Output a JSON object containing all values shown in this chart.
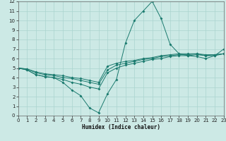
{
  "xlabel": "Humidex (Indice chaleur)",
  "xlim": [
    0,
    23
  ],
  "ylim": [
    0,
    12
  ],
  "xticks": [
    0,
    1,
    2,
    3,
    4,
    5,
    6,
    7,
    8,
    9,
    10,
    11,
    12,
    13,
    14,
    15,
    16,
    17,
    18,
    19,
    20,
    21,
    22,
    23
  ],
  "yticks": [
    0,
    1,
    2,
    3,
    4,
    5,
    6,
    7,
    8,
    9,
    10,
    11,
    12
  ],
  "bg_color": "#cce9e5",
  "line_color": "#1a7a6e",
  "grid_color": "#aad4cf",
  "lines": [
    {
      "x": [
        0,
        1,
        2,
        3,
        4,
        5,
        6,
        7,
        8,
        9,
        10,
        11,
        12,
        13,
        14,
        15,
        16,
        17,
        18,
        19,
        20,
        21,
        22,
        23
      ],
      "y": [
        5.0,
        4.8,
        4.3,
        4.1,
        4.0,
        3.5,
        2.7,
        2.1,
        0.8,
        0.3,
        2.3,
        3.8,
        7.6,
        10.0,
        11.0,
        12.0,
        10.2,
        7.5,
        6.5,
        6.3,
        6.2,
        6.0,
        6.3,
        7.0
      ]
    },
    {
      "x": [
        0,
        1,
        2,
        3,
        4,
        5,
        6,
        7,
        8,
        9,
        10,
        11,
        12,
        13,
        14,
        15,
        16,
        17,
        18,
        19,
        20,
        21,
        22,
        23
      ],
      "y": [
        5.0,
        4.8,
        4.3,
        4.1,
        4.0,
        3.8,
        3.5,
        3.3,
        3.0,
        2.8,
        4.5,
        5.0,
        5.3,
        5.5,
        5.7,
        5.9,
        6.0,
        6.2,
        6.3,
        6.3,
        6.4,
        6.3,
        6.3,
        6.5
      ]
    },
    {
      "x": [
        0,
        1,
        2,
        3,
        4,
        5,
        6,
        7,
        8,
        9,
        10,
        11,
        12,
        13,
        14,
        15,
        16,
        17,
        18,
        19,
        20,
        21,
        22,
        23
      ],
      "y": [
        5.0,
        4.9,
        4.5,
        4.3,
        4.2,
        4.0,
        3.9,
        3.7,
        3.5,
        3.3,
        4.8,
        5.3,
        5.5,
        5.7,
        5.9,
        6.0,
        6.2,
        6.3,
        6.4,
        6.4,
        6.5,
        6.3,
        6.4,
        6.5
      ]
    },
    {
      "x": [
        0,
        1,
        2,
        3,
        4,
        5,
        6,
        7,
        8,
        9,
        10,
        11,
        12,
        13,
        14,
        15,
        16,
        17,
        18,
        19,
        20,
        21,
        22,
        23
      ],
      "y": [
        5.0,
        4.9,
        4.6,
        4.4,
        4.3,
        4.2,
        4.0,
        3.9,
        3.7,
        3.5,
        5.2,
        5.5,
        5.7,
        5.8,
        6.0,
        6.1,
        6.3,
        6.4,
        6.5,
        6.5,
        6.5,
        6.4,
        6.4,
        6.5
      ]
    }
  ]
}
